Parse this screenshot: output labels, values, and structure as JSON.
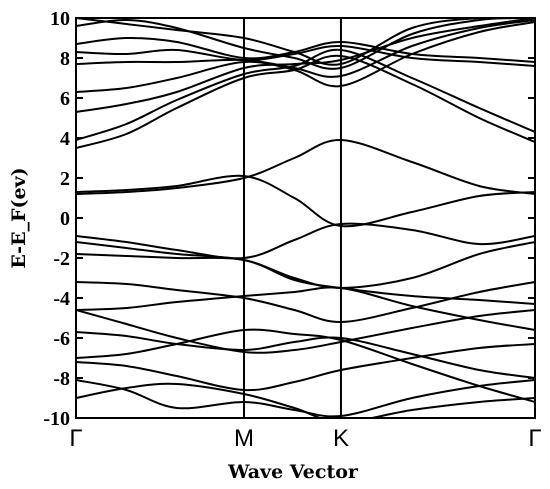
{
  "chart_data": {
    "type": "line",
    "xlabel": "Wave Vector",
    "ylabel": "E-E_F(ev)",
    "ylim": [
      -10,
      10
    ],
    "y_ticks": [
      -10,
      -8,
      -6,
      -4,
      -2,
      0,
      2,
      4,
      6,
      8,
      10
    ],
    "k_path": [
      "Γ",
      "M",
      "K",
      "Γ"
    ],
    "k_positions": [
      0,
      1,
      1.577,
      2.732
    ],
    "xlim": [
      0,
      2.732
    ],
    "grid": false,
    "series": [
      {
        "x": [
          0,
          0.3,
          0.6,
          1,
          1.3,
          1.577,
          2,
          2.4,
          2.732
        ],
        "values": [
          1.3,
          1.4,
          1.6,
          2.1,
          1.0,
          -0.4,
          0.3,
          1.1,
          1.3
        ]
      },
      {
        "x": [
          0,
          0.3,
          0.6,
          1,
          1.3,
          1.577,
          2,
          2.4,
          2.732
        ],
        "values": [
          1.2,
          1.3,
          1.5,
          2.0,
          3.0,
          3.9,
          2.8,
          1.6,
          1.2
        ]
      },
      {
        "x": [
          0,
          0.3,
          0.6,
          1,
          1.3,
          1.577,
          2,
          2.4,
          2.732
        ],
        "values": [
          -0.9,
          -1.2,
          -1.6,
          -2.0,
          -1.1,
          -0.3,
          -0.6,
          -1.3,
          -0.9
        ]
      },
      {
        "x": [
          0,
          0.3,
          0.6,
          1,
          1.3,
          1.577,
          2,
          2.4,
          2.732
        ],
        "values": [
          -1.2,
          -1.5,
          -1.8,
          -2.1,
          -3.0,
          -3.5,
          -3.0,
          -1.8,
          -1.2
        ]
      },
      {
        "x": [
          0,
          0.3,
          0.6,
          1,
          1.3,
          1.577,
          2,
          2.4,
          2.732
        ],
        "values": [
          -1.8,
          -1.9,
          -2.0,
          -2.1,
          -3.1,
          -3.5,
          -3.9,
          -4.1,
          -4.3
        ]
      },
      {
        "x": [
          0,
          0.3,
          0.6,
          1,
          1.3,
          1.577,
          2,
          2.4,
          2.732
        ],
        "values": [
          -3.2,
          -3.3,
          -3.6,
          -4.0,
          -4.6,
          -5.2,
          -4.5,
          -3.7,
          -3.2
        ]
      },
      {
        "x": [
          0,
          0.3,
          0.6,
          1,
          1.3,
          1.577,
          2,
          2.4,
          2.732
        ],
        "values": [
          -4.6,
          -4.5,
          -4.2,
          -3.9,
          -3.7,
          -3.5,
          -4.4,
          -5.1,
          -5.6
        ]
      },
      {
        "x": [
          0,
          0.3,
          0.6,
          1,
          1.3,
          1.577,
          2,
          2.4,
          2.732
        ],
        "values": [
          -4.6,
          -5.3,
          -6.0,
          -6.7,
          -6.6,
          -6.2,
          -5.5,
          -4.9,
          -4.6
        ]
      },
      {
        "x": [
          0,
          0.3,
          0.6,
          1,
          1.3,
          1.577,
          2,
          2.4,
          2.732
        ],
        "values": [
          -5.7,
          -5.9,
          -6.3,
          -6.6,
          -6.2,
          -6.0,
          -6.8,
          -7.6,
          -8.0
        ]
      },
      {
        "x": [
          0,
          0.3,
          0.6,
          1,
          1.3,
          1.577,
          2,
          2.4,
          2.732
        ],
        "values": [
          -7.0,
          -6.8,
          -6.3,
          -5.6,
          -5.8,
          -6.1,
          -7.3,
          -8.4,
          -9.2
        ]
      },
      {
        "x": [
          0,
          0.3,
          0.6,
          1,
          1.3,
          1.577,
          2,
          2.4,
          2.732
        ],
        "values": [
          -7.2,
          -7.4,
          -7.9,
          -8.6,
          -8.2,
          -7.6,
          -7.0,
          -6.5,
          -6.3
        ]
      },
      {
        "x": [
          0,
          0.3,
          0.6,
          1,
          1.3,
          1.577,
          2,
          2.4,
          2.732
        ],
        "values": [
          -8.1,
          -8.6,
          -9.5,
          -9.2,
          -9.6,
          -9.9,
          -9.0,
          -8.4,
          -8.1
        ]
      },
      {
        "x": [
          0,
          0.3,
          0.6,
          1,
          1.3,
          1.577,
          2,
          2.4,
          2.732
        ],
        "values": [
          -9.0,
          -8.5,
          -8.3,
          -8.8,
          -9.5,
          -10.2,
          -9.6,
          -9.2,
          -9.0
        ]
      },
      {
        "x": [
          0,
          0.3,
          0.6,
          1,
          1.3,
          1.577,
          2,
          2.4,
          2.732
        ],
        "values": [
          3.5,
          4.2,
          5.5,
          7.0,
          7.4,
          8.1,
          6.7,
          5.0,
          3.8
        ]
      },
      {
        "x": [
          0,
          0.3,
          0.6,
          1,
          1.3,
          1.577,
          2,
          2.4,
          2.732
        ],
        "values": [
          3.9,
          4.7,
          5.9,
          7.2,
          7.6,
          8.4,
          7.0,
          5.5,
          4.3
        ]
      },
      {
        "x": [
          0,
          0.3,
          0.6,
          1,
          1.3,
          1.577,
          2,
          2.4,
          2.732
        ],
        "values": [
          5.3,
          5.7,
          6.3,
          7.5,
          7.7,
          7.9,
          9.0,
          9.6,
          10.0
        ]
      },
      {
        "x": [
          0,
          0.3,
          0.6,
          1,
          1.3,
          1.577,
          2,
          2.4,
          2.732
        ],
        "values": [
          6.3,
          6.5,
          7.0,
          7.8,
          7.4,
          6.6,
          8.2,
          9.3,
          9.8
        ]
      },
      {
        "x": [
          0,
          0.3,
          0.6,
          1,
          1.3,
          1.577,
          2,
          2.4,
          2.732
        ],
        "values": [
          7.7,
          7.8,
          7.8,
          7.9,
          7.5,
          7.1,
          8.6,
          9.5,
          9.9
        ]
      },
      {
        "x": [
          0,
          0.3,
          0.6,
          1,
          1.3,
          1.577,
          2,
          2.4,
          2.732
        ],
        "values": [
          8.3,
          8.2,
          8.4,
          7.9,
          8.2,
          8.6,
          8.0,
          7.8,
          7.6
        ]
      },
      {
        "x": [
          0,
          0.3,
          0.6,
          1,
          1.3,
          1.577,
          2,
          2.4,
          2.732
        ],
        "values": [
          8.7,
          9.0,
          8.8,
          8.0,
          8.3,
          8.8,
          8.2,
          8.0,
          7.8
        ]
      },
      {
        "x": [
          0,
          0.3,
          0.6,
          1,
          1.3,
          1.577,
          2,
          2.4,
          2.732
        ],
        "values": [
          9.6,
          9.9,
          9.5,
          8.5,
          8.0,
          7.5,
          9.2,
          9.9,
          10.0
        ]
      },
      {
        "x": [
          0,
          0.3,
          0.6,
          1,
          1.3,
          1.577,
          2,
          2.4,
          2.732
        ],
        "values": [
          10.0,
          9.7,
          9.4,
          9.0,
          8.3,
          7.7,
          9.5,
          10.0,
          10.0
        ]
      }
    ]
  }
}
